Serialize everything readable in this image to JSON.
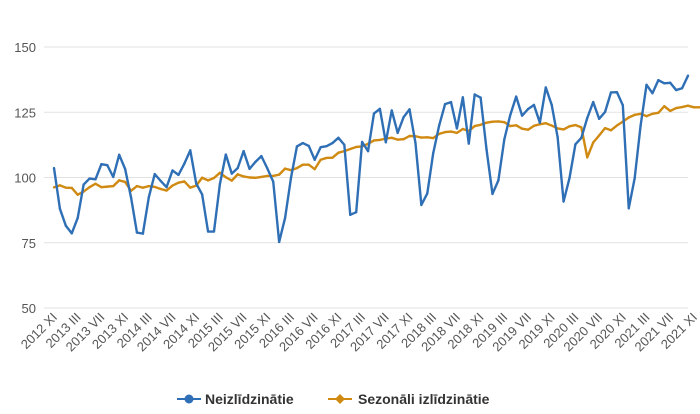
{
  "chart_data": {
    "type": "line",
    "ylim": [
      50,
      150
    ],
    "yticks": [
      50,
      75,
      100,
      125,
      150
    ],
    "grid": true,
    "legend_position": "bottom",
    "x_ticks": [
      "2012 XI",
      "2013 III",
      "2013 VII",
      "2013 XI",
      "2014 III",
      "2014 VII",
      "2014 XI",
      "2015 III",
      "2015 VII",
      "2015 XI",
      "2016 III",
      "2016 VII",
      "2016 XI",
      "2017 III",
      "2017 VII",
      "2017 XI",
      "2018 III",
      "2018 VII",
      "2018 XI",
      "2019 III",
      "2019 VII",
      "2019 XI",
      "2020 III",
      "2020 VII",
      "2020 XI",
      "2021 III",
      "2021 VII",
      "2021 XI"
    ],
    "series": [
      {
        "name": "Neizlīdzinātie",
        "color": "#2f6fb5",
        "marker": "circle",
        "values": [
          103.6,
          88.0,
          81.5,
          78.6,
          84.5,
          97.3,
          99.6,
          99.3,
          105.1,
          104.7,
          100.2,
          108.7,
          103.3,
          92.4,
          78.9,
          78.5,
          92.4,
          101.3,
          98.7,
          96.3,
          102.7,
          101.0,
          105.3,
          110.4,
          97.7,
          93.5,
          79.3,
          79.3,
          97.5,
          108.8,
          101.5,
          103.6,
          110.1,
          103.3,
          106.0,
          108.2,
          103.5,
          98.4,
          75.3,
          84.5,
          99.9,
          111.9,
          113.2,
          112.1,
          106.8,
          111.6,
          112.0,
          113.2,
          115.2,
          112.5,
          85.7,
          86.7,
          113.6,
          110.1,
          124.5,
          126.3,
          113.5,
          125.7,
          117.1,
          123.1,
          126.1,
          113.3,
          89.5,
          93.9,
          109.3,
          119.9,
          128.1,
          128.9,
          118.8,
          130.7,
          113.0,
          131.8,
          130.6,
          110.7,
          93.7,
          98.9,
          114.6,
          123.9,
          131.0,
          123.7,
          126.2,
          127.8,
          121.0,
          134.5,
          127.8,
          115.4,
          90.8,
          99.8,
          112.7,
          115.2,
          122.8,
          128.9,
          122.5,
          125.1,
          132.6,
          132.7,
          127.7,
          88.2,
          99.7,
          119.9,
          135.5,
          132.3,
          137.3,
          136.1,
          136.3,
          133.5,
          134.2,
          139.0
        ]
      },
      {
        "name": "Sezonāli izlīdzinātie",
        "color": "#d08a12",
        "marker": "diamond",
        "values": [
          96.2,
          97.0,
          96.1,
          96.0,
          93.4,
          94.6,
          96.3,
          97.6,
          96.3,
          96.5,
          96.7,
          98.9,
          98.3,
          94.9,
          96.7,
          96.1,
          96.7,
          96.4,
          95.6,
          95.0,
          96.9,
          98.0,
          98.5,
          96.1,
          96.9,
          99.9,
          98.9,
          99.8,
          101.8,
          100.1,
          98.8,
          101.2,
          100.4,
          100.0,
          99.9,
          100.2,
          100.6,
          100.6,
          101.1,
          103.4,
          102.8,
          103.6,
          104.9,
          104.9,
          103.2,
          106.8,
          107.5,
          107.6,
          109.5,
          110.1,
          110.9,
          111.7,
          111.9,
          112.9,
          114.2,
          114.4,
          114.9,
          115.2,
          114.5,
          114.7,
          115.9,
          115.8,
          115.3,
          115.4,
          115.1,
          116.7,
          117.4,
          117.6,
          117.1,
          118.6,
          117.8,
          119.7,
          120.2,
          121.0,
          121.4,
          121.5,
          121.2,
          119.7,
          120.0,
          118.7,
          118.3,
          119.8,
          120.4,
          120.8,
          119.9,
          118.8,
          118.4,
          119.6,
          120.1,
          119.2,
          107.7,
          113.4,
          116.1,
          118.9,
          118.1,
          119.9,
          121.4,
          123.0,
          124.0,
          124.4,
          123.5,
          124.4,
          124.8,
          127.3,
          125.5,
          126.6,
          127.0,
          127.5,
          126.9,
          126.9
        ]
      }
    ]
  },
  "legend": {
    "items": [
      "Neizlīdzinātie",
      "Sezonāli izlīdzinātie"
    ]
  }
}
